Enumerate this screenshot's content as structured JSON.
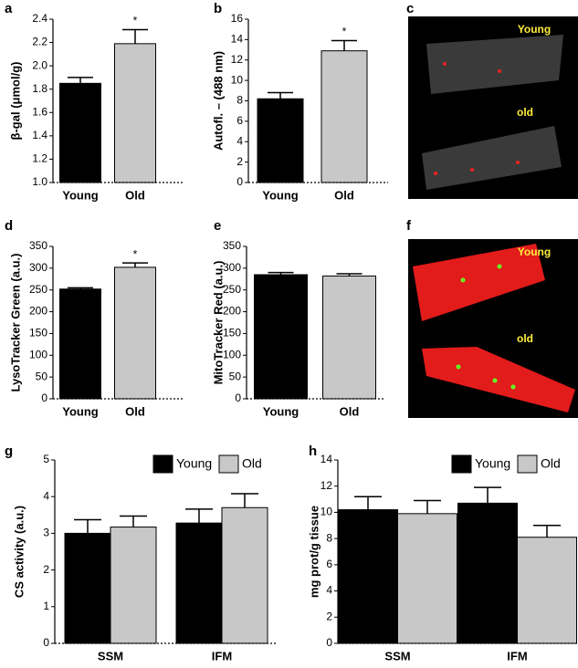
{
  "chart_data": [
    {
      "type": "bar",
      "panel": "a",
      "ylabel": "β-gal (μmol/g)",
      "categories": [
        "Young",
        "Old"
      ],
      "values": [
        1.85,
        2.19
      ],
      "errors": [
        0.05,
        0.12
      ],
      "colors": [
        "#000000",
        "#c8c8c8"
      ],
      "annotation": "*",
      "ylim": [
        1.0,
        2.4
      ],
      "yticks": [
        {
          "value": 1.0,
          "label": "1.0"
        },
        1.2,
        1.4,
        1.6,
        1.8,
        {
          "value": 2.0,
          "label": "2.0"
        },
        2.2,
        2.4
      ]
    },
    {
      "type": "bar",
      "panel": "b",
      "ylabel": "Autofl. – (488 nm)",
      "categories": [
        "Young",
        "Old"
      ],
      "values": [
        8.2,
        12.9
      ],
      "errors": [
        0.6,
        1.0
      ],
      "colors": [
        "#000000",
        "#c8c8c8"
      ],
      "annotation": "*",
      "ylim": [
        0,
        16
      ],
      "yticks": [
        0,
        2,
        4,
        6,
        8,
        10,
        12,
        14,
        16
      ]
    },
    {
      "type": "image",
      "panel": "c",
      "labels": [
        "Young",
        "old"
      ]
    },
    {
      "type": "bar",
      "panel": "d",
      "ylabel": "LysoTracker Green (a.u.)",
      "categories": [
        "Young",
        "Old"
      ],
      "values": [
        252,
        302
      ],
      "errors": [
        3,
        10
      ],
      "colors": [
        "#000000",
        "#c8c8c8"
      ],
      "annotation": "*",
      "ylim": [
        0,
        350
      ],
      "yticks": [
        0,
        50,
        100,
        150,
        200,
        250,
        300,
        350
      ]
    },
    {
      "type": "bar",
      "panel": "e",
      "ylabel": "MitoTracker Red (a.u.)",
      "categories": [
        "Young",
        "Old"
      ],
      "values": [
        285,
        282
      ],
      "errors": [
        5,
        5
      ],
      "colors": [
        "#000000",
        "#c8c8c8"
      ],
      "ylim": [
        0,
        350
      ],
      "yticks": [
        0,
        50,
        100,
        150,
        200,
        250,
        300,
        350
      ]
    },
    {
      "type": "image",
      "panel": "f",
      "labels": [
        "Young",
        "old"
      ]
    },
    {
      "type": "grouped_bar",
      "panel": "g",
      "ylabel": "CS activity (a.u.)",
      "categories": [
        "SSM",
        "IFM"
      ],
      "series": [
        {
          "name": "Young",
          "color": "#000000",
          "values": [
            3.0,
            3.28
          ],
          "errors": [
            0.37,
            0.38
          ]
        },
        {
          "name": "Old",
          "color": "#c8c8c8",
          "values": [
            3.17,
            3.7
          ],
          "errors": [
            0.3,
            0.38
          ]
        }
      ],
      "ylim": [
        0,
        5
      ],
      "yticks": [
        0,
        1,
        2,
        3,
        4,
        5
      ],
      "legend": "top"
    },
    {
      "type": "grouped_bar",
      "panel": "h",
      "ylabel": "mg prot/g tissue",
      "categories": [
        "SSM",
        "IFM"
      ],
      "series": [
        {
          "name": "Young",
          "color": "#000000",
          "values": [
            10.2,
            10.7
          ],
          "errors": [
            1.0,
            1.2
          ]
        },
        {
          "name": "Old",
          "color": "#c8c8c8",
          "values": [
            9.9,
            8.1
          ],
          "errors": [
            1.0,
            0.9
          ]
        }
      ],
      "ylim": [
        0,
        14
      ],
      "yticks": [
        0,
        2,
        4,
        6,
        8,
        10,
        12,
        14
      ],
      "legend": "top"
    }
  ]
}
